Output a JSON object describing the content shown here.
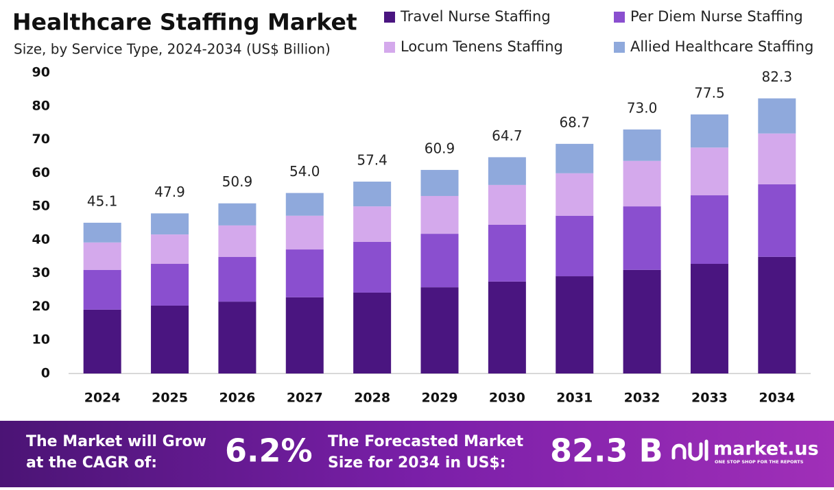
{
  "chart_data": {
    "type": "stacked-bar",
    "title": "Healthcare Staffing Market",
    "subtitle": "Size, by Service Type, 2024-2034 (US$ Billion)",
    "categories": [
      "2024",
      "2025",
      "2026",
      "2027",
      "2028",
      "2029",
      "2030",
      "2031",
      "2032",
      "2033",
      "2034"
    ],
    "series": [
      {
        "name": "Travel Nurse Staffing",
        "color": "#4a1580",
        "values": [
          19.1,
          20.3,
          21.5,
          22.8,
          24.2,
          25.8,
          27.5,
          29.1,
          31.0,
          32.8,
          34.9
        ]
      },
      {
        "name": "Per Diem Nurse Staffing",
        "color": "#8a4fcf",
        "values": [
          11.9,
          12.5,
          13.4,
          14.3,
          15.2,
          16.0,
          17.0,
          18.1,
          19.0,
          20.5,
          21.7
        ]
      },
      {
        "name": "Locum Tenens Staffing",
        "color": "#d4a9ec",
        "values": [
          8.2,
          8.8,
          9.4,
          10.1,
          10.6,
          11.3,
          11.9,
          12.7,
          13.6,
          14.3,
          15.2
        ]
      },
      {
        "name": "Allied Healthcare Staffing",
        "color": "#8fa9dc",
        "values": [
          5.9,
          6.3,
          6.6,
          6.8,
          7.4,
          7.8,
          8.3,
          8.8,
          9.4,
          9.9,
          10.5
        ]
      }
    ],
    "totals": {
      "values": [
        45.1,
        47.9,
        50.9,
        54.0,
        57.4,
        60.9,
        64.7,
        68.7,
        73.0,
        77.5,
        82.3
      ],
      "value_labels": [
        "45.1",
        "47.9",
        "50.9",
        "54.0",
        "57.4",
        "60.9",
        "64.7",
        "68.7",
        "73.0",
        "77.5",
        "82.3"
      ]
    },
    "ylim": [
      0,
      90
    ],
    "yticks": [
      0,
      10,
      20,
      30,
      40,
      50,
      60,
      70,
      80,
      90
    ],
    "grid": false
  },
  "footer": {
    "cagr_text": [
      "The Market will Grow",
      "at the CAGR of:"
    ],
    "cagr_value": "6.2%",
    "size_text": [
      "The Forecasted Market",
      "Size for 2034 in US$:"
    ],
    "size_value": "82.3 B",
    "brand": "market.us",
    "tagline": "ONE STOP SHOP FOR THE REPORTS"
  }
}
